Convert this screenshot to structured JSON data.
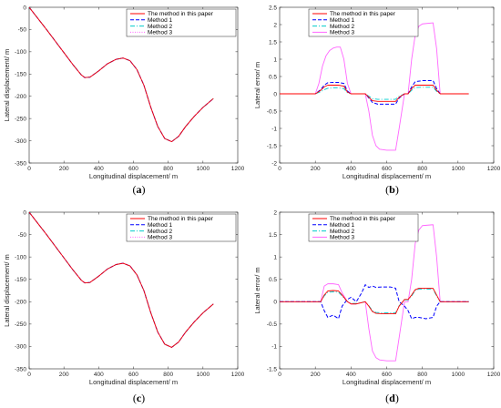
{
  "chart_data": [
    {
      "type": "line",
      "panel_label": "a",
      "xlabel": "Longitudinal displacement/ m",
      "ylabel": "Lateral displacement/ m",
      "xlim": [
        0,
        1200
      ],
      "ylim": [
        -350,
        0
      ],
      "xticks": [
        "0",
        "200",
        "400",
        "600",
        "800",
        "1000",
        "1200"
      ],
      "yticks": [
        "0",
        "-50",
        "-100",
        "-150",
        "-200",
        "-250",
        "-300",
        "-350"
      ],
      "legend_position": "top-right",
      "series": [
        {
          "name": "The method in this paper",
          "color": "#ff0000",
          "dash": "solid",
          "x": [
            0,
            50,
            100,
            150,
            200,
            250,
            300,
            320,
            350,
            400,
            450,
            500,
            540,
            580,
            620,
            660,
            700,
            740,
            780,
            820,
            860,
            900,
            950,
            1000,
            1060
          ],
          "y": [
            0,
            -25,
            -50,
            -76,
            -102,
            -128,
            -152,
            -158,
            -157,
            -143,
            -127,
            -117,
            -114,
            -120,
            -140,
            -175,
            -225,
            -268,
            -295,
            -302,
            -290,
            -268,
            -245,
            -225,
            -205
          ]
        },
        {
          "name": "Method 1",
          "color": "#0000ff",
          "dash": "dashed",
          "x": [
            0,
            50,
            100,
            150,
            200,
            250,
            300,
            320,
            350,
            400,
            450,
            500,
            540,
            580,
            620,
            660,
            700,
            740,
            780,
            820,
            860,
            900,
            950,
            1000,
            1060
          ],
          "y": [
            0,
            -25,
            -50,
            -76,
            -102,
            -128,
            -152,
            -158,
            -157,
            -143,
            -127,
            -117,
            -114,
            -120,
            -140,
            -175,
            -225,
            -268,
            -295,
            -302,
            -290,
            -268,
            -245,
            -225,
            -205
          ]
        },
        {
          "name": "Method 2",
          "color": "#00cccc",
          "dash": "dashdot",
          "x": [
            0,
            50,
            100,
            150,
            200,
            250,
            300,
            320,
            350,
            400,
            450,
            500,
            540,
            580,
            620,
            660,
            700,
            740,
            780,
            820,
            860,
            900,
            950,
            1000,
            1060
          ],
          "y": [
            0,
            -25,
            -50,
            -76,
            -102,
            -128,
            -152,
            -158,
            -157,
            -143,
            -127,
            -117,
            -114,
            -120,
            -140,
            -175,
            -225,
            -268,
            -295,
            -302,
            -290,
            -268,
            -245,
            -225,
            -205
          ]
        },
        {
          "name": "Method 3",
          "color": "#ff66ff",
          "dash": "dotted",
          "x": [
            0,
            50,
            100,
            150,
            200,
            250,
            300,
            320,
            350,
            400,
            450,
            500,
            540,
            580,
            620,
            660,
            700,
            740,
            780,
            820,
            860,
            900,
            950,
            1000,
            1060
          ],
          "y": [
            0,
            -25,
            -50,
            -76,
            -102,
            -128,
            -152,
            -158,
            -157,
            -143,
            -127,
            -117,
            -114,
            -120,
            -140,
            -175,
            -225,
            -268,
            -295,
            -302,
            -290,
            -268,
            -245,
            -225,
            -205
          ]
        }
      ]
    },
    {
      "type": "line",
      "panel_label": "b",
      "xlabel": "Longitudinal displacement/ m",
      "ylabel": "Lateral error/ m",
      "xlim": [
        0,
        1200
      ],
      "ylim": [
        -2,
        2.5
      ],
      "xticks": [
        "0",
        "200",
        "400",
        "600",
        "800",
        "1000",
        "1200"
      ],
      "yticks": [
        "2.5",
        "2",
        "1.5",
        "1",
        "0.5",
        "0",
        "-0.5",
        "-1",
        "-1.5",
        "-2"
      ],
      "legend_position": "top-left",
      "series": [
        {
          "name": "The method in this paper",
          "color": "#ff0000",
          "dash": "solid",
          "x": [
            0,
            200,
            230,
            250,
            270,
            300,
            330,
            360,
            380,
            400,
            480,
            500,
            520,
            550,
            600,
            650,
            670,
            700,
            720,
            740,
            760,
            800,
            860,
            880,
            900,
            1060
          ],
          "y": [
            0,
            0,
            0.1,
            0.2,
            0.25,
            0.25,
            0.25,
            0.22,
            0.05,
            0,
            0,
            -0.1,
            -0.2,
            -0.22,
            -0.22,
            -0.22,
            -0.1,
            0,
            0,
            0.15,
            0.25,
            0.25,
            0.25,
            0.1,
            0,
            0
          ]
        },
        {
          "name": "Method 1",
          "color": "#0000ff",
          "dash": "dashed",
          "x": [
            0,
            200,
            230,
            250,
            270,
            300,
            330,
            360,
            380,
            400,
            480,
            500,
            520,
            550,
            600,
            650,
            670,
            700,
            720,
            740,
            760,
            800,
            860,
            880,
            900,
            1060
          ],
          "y": [
            0,
            0,
            0.12,
            0.25,
            0.32,
            0.33,
            0.33,
            0.3,
            0.08,
            0,
            0,
            -0.12,
            -0.25,
            -0.3,
            -0.3,
            -0.3,
            -0.12,
            0,
            0,
            0.2,
            0.35,
            0.38,
            0.38,
            0.15,
            0,
            0
          ]
        },
        {
          "name": "Method 2",
          "color": "#00cccc",
          "dash": "dashdot",
          "x": [
            0,
            200,
            230,
            250,
            270,
            300,
            330,
            360,
            380,
            400,
            480,
            500,
            520,
            550,
            600,
            650,
            670,
            700,
            720,
            740,
            760,
            800,
            860,
            880,
            900,
            1060
          ],
          "y": [
            0,
            0,
            0.06,
            0.12,
            0.16,
            0.17,
            0.17,
            0.15,
            0.03,
            0,
            0,
            -0.07,
            -0.14,
            -0.16,
            -0.16,
            -0.16,
            -0.07,
            0,
            0,
            0.1,
            0.18,
            0.19,
            0.19,
            0.07,
            0,
            0
          ]
        },
        {
          "name": "Method 3",
          "color": "#ff66ff",
          "dash": "solid",
          "x": [
            0,
            200,
            220,
            240,
            260,
            280,
            300,
            320,
            340,
            360,
            380,
            400,
            480,
            500,
            520,
            540,
            560,
            600,
            650,
            670,
            700,
            720,
            740,
            760,
            780,
            800,
            860,
            880,
            900,
            1060
          ],
          "y": [
            0,
            0,
            0.3,
            0.8,
            1.1,
            1.25,
            1.32,
            1.35,
            1.35,
            1.0,
            0.3,
            0,
            0,
            -0.5,
            -1.2,
            -1.5,
            -1.6,
            -1.63,
            -1.63,
            -1.0,
            0,
            0,
            1.0,
            1.7,
            1.95,
            2.02,
            2.05,
            1.3,
            0,
            0
          ]
        }
      ]
    },
    {
      "type": "line",
      "panel_label": "c",
      "xlabel": "Longitudinal displacement/ m",
      "ylabel": "Lateral displacement/ m",
      "xlim": [
        0,
        1200
      ],
      "ylim": [
        -350,
        0
      ],
      "xticks": [
        "0",
        "200",
        "400",
        "600",
        "800",
        "1000",
        "1200"
      ],
      "yticks": [
        "0",
        "-50",
        "-100",
        "-150",
        "-200",
        "-250",
        "-300",
        "-350"
      ],
      "legend_position": "top-right",
      "series": [
        {
          "name": "The method in this paper",
          "color": "#ff0000",
          "dash": "solid",
          "x": [
            0,
            50,
            100,
            150,
            200,
            250,
            300,
            320,
            350,
            400,
            450,
            500,
            540,
            580,
            620,
            660,
            700,
            740,
            780,
            820,
            860,
            900,
            950,
            1000,
            1060
          ],
          "y": [
            0,
            -25,
            -50,
            -76,
            -102,
            -128,
            -152,
            -158,
            -157,
            -143,
            -127,
            -117,
            -114,
            -120,
            -140,
            -175,
            -225,
            -268,
            -295,
            -302,
            -290,
            -268,
            -245,
            -225,
            -205
          ]
        },
        {
          "name": "Method 1",
          "color": "#0000ff",
          "dash": "dashed",
          "x": [
            0,
            50,
            100,
            150,
            200,
            250,
            300,
            320,
            350,
            400,
            450,
            500,
            540,
            580,
            620,
            660,
            700,
            740,
            780,
            820,
            860,
            900,
            950,
            1000,
            1060
          ],
          "y": [
            0,
            -25,
            -50,
            -76,
            -102,
            -128,
            -152,
            -158,
            -157,
            -143,
            -127,
            -117,
            -114,
            -120,
            -140,
            -175,
            -225,
            -268,
            -295,
            -302,
            -290,
            -268,
            -245,
            -225,
            -205
          ]
        },
        {
          "name": "Method 2",
          "color": "#00cccc",
          "dash": "dashdot",
          "x": [
            0,
            50,
            100,
            150,
            200,
            250,
            300,
            320,
            350,
            400,
            450,
            500,
            540,
            580,
            620,
            660,
            700,
            740,
            780,
            820,
            860,
            900,
            950,
            1000,
            1060
          ],
          "y": [
            0,
            -25,
            -50,
            -76,
            -102,
            -128,
            -152,
            -158,
            -157,
            -143,
            -127,
            -117,
            -114,
            -120,
            -140,
            -175,
            -225,
            -268,
            -295,
            -302,
            -290,
            -268,
            -245,
            -225,
            -205
          ]
        },
        {
          "name": "Method 3",
          "color": "#ff66ff",
          "dash": "dotted",
          "x": [
            0,
            50,
            100,
            150,
            200,
            250,
            300,
            320,
            350,
            400,
            450,
            500,
            540,
            580,
            620,
            660,
            700,
            740,
            780,
            820,
            860,
            900,
            950,
            1000,
            1060
          ],
          "y": [
            0,
            -25,
            -50,
            -76,
            -102,
            -128,
            -152,
            -158,
            -157,
            -143,
            -127,
            -117,
            -114,
            -120,
            -140,
            -175,
            -225,
            -268,
            -295,
            -302,
            -290,
            -268,
            -245,
            -225,
            -205
          ]
        }
      ]
    },
    {
      "type": "line",
      "panel_label": "d",
      "xlabel": "Longitudinal displacement/ m",
      "ylabel": "Lateral error/ m",
      "xlim": [
        0,
        1200
      ],
      "ylim": [
        -1.5,
        2
      ],
      "xticks": [
        "0",
        "200",
        "400",
        "600",
        "800",
        "1000",
        "1200"
      ],
      "yticks": [
        "2",
        "1.5",
        "1",
        "0.5",
        "0",
        "-0.5",
        "-1",
        "-1.5"
      ],
      "legend_position": "top-left",
      "series": [
        {
          "name": "The method in this paper",
          "color": "#ff0000",
          "dash": "solid",
          "x": [
            0,
            230,
            250,
            270,
            300,
            330,
            350,
            380,
            400,
            430,
            480,
            500,
            520,
            540,
            580,
            620,
            650,
            670,
            700,
            720,
            740,
            760,
            780,
            820,
            860,
            880,
            900,
            1060
          ],
          "y": [
            0,
            0,
            0.15,
            0.24,
            0.25,
            0.24,
            0.15,
            0,
            -0.05,
            -0.05,
            0,
            -0.1,
            -0.22,
            -0.26,
            -0.27,
            -0.27,
            -0.27,
            -0.1,
            0.05,
            0.05,
            0.15,
            0.27,
            0.3,
            0.3,
            0.3,
            0.15,
            0,
            0
          ]
        },
        {
          "name": "Method 1",
          "color": "#0000ff",
          "dash": "dashed",
          "x": [
            0,
            230,
            250,
            270,
            300,
            330,
            350,
            380,
            400,
            430,
            460,
            480,
            500,
            520,
            540,
            580,
            620,
            650,
            670,
            700,
            720,
            740,
            760,
            780,
            820,
            860,
            880,
            900,
            1060
          ],
          "y": [
            0,
            0,
            -0.2,
            -0.35,
            -0.3,
            -0.38,
            -0.1,
            0.05,
            0.1,
            0.0,
            0.2,
            0.38,
            0.32,
            0.35,
            0.32,
            0.33,
            0.33,
            0.3,
            0.0,
            -0.1,
            -0.2,
            -0.38,
            -0.35,
            -0.35,
            -0.38,
            -0.35,
            -0.1,
            0,
            0
          ]
        },
        {
          "name": "Method 2",
          "color": "#00cccc",
          "dash": "dashdot",
          "x": [
            0,
            230,
            250,
            270,
            300,
            330,
            350,
            380,
            400,
            430,
            480,
            500,
            520,
            540,
            580,
            620,
            650,
            670,
            700,
            720,
            740,
            760,
            780,
            820,
            860,
            880,
            900,
            1060
          ],
          "y": [
            0,
            0,
            0.13,
            0.21,
            0.22,
            0.21,
            0.13,
            0,
            -0.04,
            -0.04,
            0,
            -0.09,
            -0.2,
            -0.24,
            -0.25,
            -0.25,
            -0.25,
            -0.09,
            0.04,
            0.04,
            0.13,
            0.25,
            0.28,
            0.28,
            0.28,
            0.13,
            0,
            0
          ]
        },
        {
          "name": "Method 3",
          "color": "#ff66ff",
          "dash": "solid",
          "x": [
            0,
            230,
            250,
            270,
            300,
            330,
            350,
            380,
            400,
            430,
            480,
            500,
            520,
            540,
            560,
            600,
            650,
            670,
            700,
            720,
            740,
            760,
            780,
            800,
            860,
            880,
            900,
            1060
          ],
          "y": [
            0,
            0,
            0.35,
            0.4,
            0.4,
            0.38,
            0.2,
            0,
            -0.05,
            -0.05,
            0,
            -0.6,
            -1.1,
            -1.25,
            -1.3,
            -1.32,
            -1.32,
            -0.8,
            0,
            0,
            0.5,
            1.3,
            1.6,
            1.7,
            1.72,
            1.0,
            0,
            0
          ]
        }
      ]
    }
  ]
}
